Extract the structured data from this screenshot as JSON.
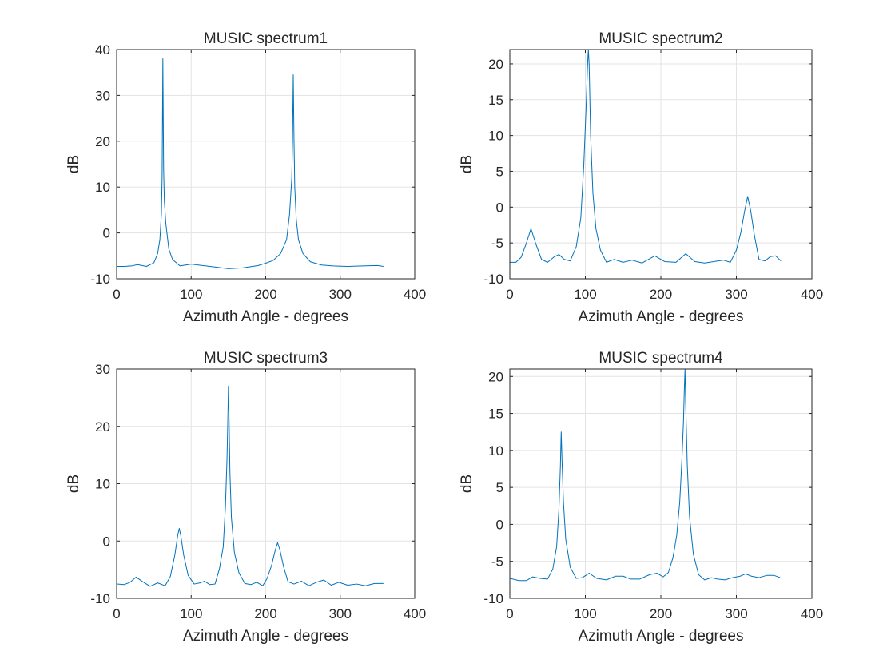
{
  "colors": {
    "line": "#0072BD",
    "grid": "#e3e3e3",
    "axis": "#262626"
  },
  "chart_data": [
    {
      "type": "line",
      "title": "MUSIC spectrum1",
      "xlabel": "Azimuth Angle - degrees",
      "ylabel": "dB",
      "xlim": [
        0,
        400
      ],
      "ylim": [
        -10,
        40
      ],
      "xticks": [
        0,
        100,
        200,
        300,
        400
      ],
      "yticks": [
        -10,
        0,
        10,
        20,
        30,
        40
      ],
      "grid": true,
      "series": [
        {
          "x": [
            0,
            10,
            20,
            28,
            40,
            50,
            55,
            58,
            60,
            61,
            62,
            63,
            64,
            66,
            70,
            75,
            85,
            100,
            120,
            150,
            170,
            190,
            200,
            210,
            220,
            228,
            232,
            235,
            236,
            237,
            238,
            239,
            241,
            244,
            250,
            260,
            275,
            290,
            310,
            330,
            350,
            358
          ],
          "y": [
            -7.3,
            -7.3,
            -7.2,
            -6.9,
            -7.3,
            -6.5,
            -4.5,
            -1.5,
            4,
            12,
            38,
            14,
            7,
            2,
            -3.5,
            -5.8,
            -7.2,
            -6.8,
            -7.2,
            -7.8,
            -7.6,
            -7.1,
            -6.6,
            -6.0,
            -4.5,
            -1.5,
            4,
            12,
            20,
            34.5,
            20,
            10,
            3,
            -1.5,
            -4.5,
            -6.3,
            -7.0,
            -7.2,
            -7.3,
            -7.2,
            -7.1,
            -7.3
          ]
        }
      ]
    },
    {
      "type": "line",
      "title": "MUSIC spectrum2",
      "xlabel": "Azimuth Angle - degrees",
      "ylabel": "dB",
      "xlim": [
        0,
        400
      ],
      "ylim": [
        -10,
        22
      ],
      "xticks": [
        0,
        100,
        200,
        300,
        400
      ],
      "yticks": [
        -10,
        -5,
        0,
        5,
        10,
        15,
        20
      ],
      "grid": true,
      "series": [
        {
          "x": [
            0,
            8,
            15,
            22,
            28,
            34,
            42,
            50,
            58,
            65,
            72,
            80,
            88,
            94,
            98,
            101,
            103,
            104,
            105,
            107,
            110,
            114,
            120,
            128,
            138,
            150,
            162,
            175,
            192,
            205,
            220,
            233,
            245,
            258,
            270,
            283,
            292,
            300,
            306,
            311,
            315,
            319,
            324,
            330,
            338,
            345,
            352,
            359
          ],
          "y": [
            -7.7,
            -7.7,
            -7.0,
            -5.0,
            -3.0,
            -5.0,
            -7.3,
            -7.7,
            -7.0,
            -6.6,
            -7.3,
            -7.5,
            -5.5,
            -1.5,
            6,
            14,
            20,
            22,
            20,
            10,
            2,
            -3,
            -6.0,
            -7.7,
            -7.3,
            -7.7,
            -7.4,
            -7.8,
            -6.8,
            -7.6,
            -7.7,
            -6.5,
            -7.6,
            -7.8,
            -7.6,
            -7.4,
            -7.7,
            -6.0,
            -3.5,
            -0.5,
            1.5,
            -0.5,
            -4.0,
            -7.3,
            -7.5,
            -6.9,
            -6.8,
            -7.5
          ]
        }
      ]
    },
    {
      "type": "line",
      "title": "MUSIC spectrum3",
      "xlabel": "Azimuth Angle - degrees",
      "ylabel": "dB",
      "xlim": [
        0,
        400
      ],
      "ylim": [
        -10,
        30
      ],
      "xticks": [
        0,
        100,
        200,
        300,
        400
      ],
      "yticks": [
        -10,
        0,
        10,
        20,
        30
      ],
      "grid": true,
      "series": [
        {
          "x": [
            0,
            10,
            18,
            26,
            35,
            45,
            55,
            65,
            72,
            78,
            82,
            84,
            86,
            90,
            96,
            104,
            112,
            118,
            125,
            132,
            138,
            143,
            146,
            148,
            149,
            150,
            151,
            152,
            154,
            158,
            164,
            172,
            180,
            188,
            196,
            202,
            208,
            213,
            216,
            219,
            224,
            230,
            238,
            248,
            258,
            268,
            278,
            288,
            298,
            310,
            322,
            334,
            346,
            358
          ],
          "y": [
            -7.5,
            -7.6,
            -7.2,
            -6.3,
            -7.1,
            -7.9,
            -7.3,
            -7.8,
            -6.2,
            -2.5,
            1,
            2.2,
            1,
            -2.5,
            -6.0,
            -7.5,
            -7.3,
            -7.0,
            -7.6,
            -7.5,
            -4.8,
            -1,
            6,
            14,
            20,
            27,
            20,
            12,
            4,
            -2,
            -5.5,
            -7.4,
            -7.6,
            -7.2,
            -7.8,
            -6.5,
            -4.2,
            -1.5,
            -0.3,
            -1.5,
            -4.5,
            -7.1,
            -7.5,
            -7.0,
            -7.8,
            -7.2,
            -6.8,
            -7.7,
            -7.2,
            -7.7,
            -7.5,
            -7.8,
            -7.4,
            -7.4
          ]
        }
      ]
    },
    {
      "type": "line",
      "title": "MUSIC spectrum4",
      "xlabel": "Azimuth Angle - degrees",
      "ylabel": "dB",
      "xlim": [
        0,
        400
      ],
      "ylim": [
        -10,
        21
      ],
      "xticks": [
        0,
        100,
        200,
        300,
        400
      ],
      "yticks": [
        -10,
        -5,
        0,
        5,
        10,
        15,
        20
      ],
      "grid": true,
      "series": [
        {
          "x": [
            0,
            12,
            22,
            30,
            40,
            50,
            57,
            62,
            65,
            67,
            68,
            69,
            71,
            74,
            80,
            88,
            96,
            105,
            115,
            128,
            140,
            150,
            160,
            172,
            185,
            195,
            203,
            210,
            216,
            221,
            225,
            228,
            230,
            231,
            232,
            233,
            235,
            238,
            243,
            250,
            258,
            267,
            275,
            285,
            295,
            305,
            312,
            320,
            330,
            340,
            350,
            358
          ],
          "y": [
            -7.3,
            -7.6,
            -7.6,
            -7.1,
            -7.3,
            -7.4,
            -6,
            -3,
            2,
            8,
            12.5,
            9,
            3,
            -2,
            -5.8,
            -7.3,
            -7.2,
            -6.6,
            -7.3,
            -7.5,
            -7.0,
            -7.0,
            -7.4,
            -7.4,
            -6.8,
            -6.6,
            -7.1,
            -6.5,
            -4.5,
            -1.5,
            3,
            9,
            14,
            18,
            21,
            16,
            8,
            1,
            -4,
            -6.8,
            -7.5,
            -7.2,
            -7.4,
            -7.5,
            -7.2,
            -7.0,
            -6.7,
            -7.0,
            -7.2,
            -6.9,
            -6.9,
            -7.2
          ]
        }
      ]
    }
  ]
}
